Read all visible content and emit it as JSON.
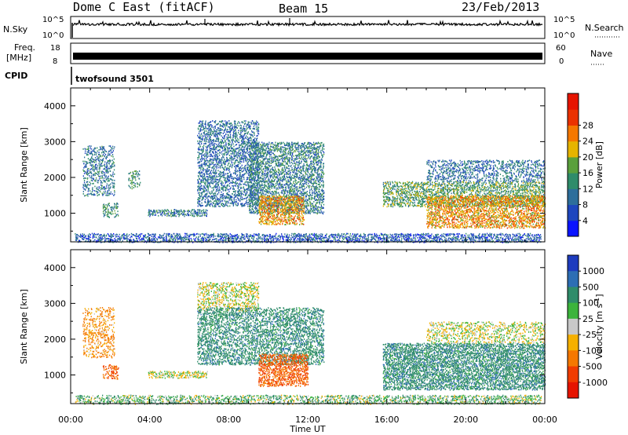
{
  "header": {
    "title": "Dome C East (fitACF)",
    "beam": "Beam 15",
    "date": "23/Feb/2013"
  },
  "status_panels": {
    "nsky_label": "N.Sky",
    "nsky_ticks": [
      "10^5",
      "10^0"
    ],
    "nsearch_label": "N.Search",
    "nsearch_ticks": [
      "10^5",
      "10^0"
    ],
    "freq_label": "Freq.",
    "freq_unit": "[MHz]",
    "freq_ticks": [
      "18",
      "8"
    ],
    "nave_label": "Nave",
    "nave_ticks": [
      "60",
      "0"
    ],
    "cpid_label": "CPID",
    "cpid_value": "twofsound 3501"
  },
  "chart_data": [
    {
      "type": "heatmap",
      "parameter": "power",
      "ylabel": "Slant Range [km]",
      "xlabel": "",
      "x_range_hours": [
        0,
        24
      ],
      "x_ticks": [
        "00:00",
        "04:00",
        "08:00",
        "12:00",
        "16:00",
        "20:00",
        "00:00"
      ],
      "y_range": [
        200,
        4500
      ],
      "y_ticks": [
        1000,
        2000,
        3000,
        4000
      ],
      "colorbar": {
        "label": "Power [dB]",
        "ticks": [
          4,
          8,
          12,
          16,
          20,
          24,
          28
        ],
        "colors": [
          "#0a14ff",
          "#1e46be",
          "#2d6e9b",
          "#2f8c6a",
          "#5aa03c",
          "#e6b400",
          "#f57800",
          "#eb3200",
          "#e61400"
        ]
      },
      "regions": [
        {
          "t0": 0.2,
          "t1": 23.8,
          "r0": 200,
          "r1": 450,
          "density": 0.55,
          "p": 6
        },
        {
          "t0": 0.6,
          "t1": 2.2,
          "r0": 1500,
          "r1": 2900,
          "density": 0.35,
          "p": 9
        },
        {
          "t0": 1.6,
          "t1": 2.4,
          "r0": 900,
          "r1": 1300,
          "density": 0.4,
          "p": 12
        },
        {
          "t0": 2.9,
          "t1": 3.5,
          "r0": 1700,
          "r1": 2200,
          "density": 0.35,
          "p": 12
        },
        {
          "t0": 3.9,
          "t1": 6.9,
          "r0": 930,
          "r1": 1120,
          "density": 0.6,
          "p": 9
        },
        {
          "t0": 6.4,
          "t1": 9.5,
          "r0": 1200,
          "r1": 3600,
          "density": 0.45,
          "p": 8
        },
        {
          "t0": 9.0,
          "t1": 12.8,
          "r0": 1000,
          "r1": 3000,
          "density": 0.5,
          "p": 10
        },
        {
          "t0": 9.5,
          "t1": 11.8,
          "r0": 700,
          "r1": 1500,
          "density": 0.55,
          "p": 22
        },
        {
          "t0": 15.8,
          "t1": 24,
          "r0": 1200,
          "r1": 1900,
          "density": 0.5,
          "p": 14
        },
        {
          "t0": 18,
          "t1": 24,
          "r0": 600,
          "r1": 1500,
          "density": 0.55,
          "p": 22
        },
        {
          "t0": 18,
          "t1": 24,
          "r0": 1900,
          "r1": 2500,
          "density": 0.35,
          "p": 8
        }
      ]
    },
    {
      "type": "heatmap",
      "parameter": "velocity",
      "ylabel": "Slant Range [km]",
      "xlabel": "Time UT",
      "x_range_hours": [
        0,
        24
      ],
      "x_ticks": [
        "00:00",
        "04:00",
        "08:00",
        "12:00",
        "16:00",
        "20:00",
        "00:00"
      ],
      "y_range": [
        200,
        4500
      ],
      "y_ticks": [
        1000,
        2000,
        3000,
        4000
      ],
      "colorbar": {
        "label": "Velocity [m s^-1]",
        "ticks": [
          "1000",
          "500",
          "100",
          "25",
          "-25",
          "-100",
          "-500",
          "-1000"
        ],
        "colors": [
          "#1e3cbe",
          "#2d6eb4",
          "#2f8c6a",
          "#3cb43c",
          "#c8c8c8",
          "#f5b000",
          "#f57800",
          "#f03c00",
          "#e61400"
        ]
      },
      "regions": [
        {
          "t0": 0.2,
          "t1": 23.8,
          "r0": 200,
          "r1": 450,
          "density": 0.45,
          "v": 50
        },
        {
          "t0": 0.6,
          "t1": 2.2,
          "r0": 1500,
          "r1": 2900,
          "density": 0.3,
          "v": -100
        },
        {
          "t0": 1.6,
          "t1": 2.4,
          "r0": 900,
          "r1": 1300,
          "density": 0.4,
          "v": -300
        },
        {
          "t0": 3.9,
          "t1": 6.9,
          "r0": 930,
          "r1": 1120,
          "density": 0.6,
          "v": 0
        },
        {
          "t0": 6.4,
          "t1": 9.5,
          "r0": 2800,
          "r1": 3600,
          "density": 0.4,
          "v": 0
        },
        {
          "t0": 6.4,
          "t1": 12.8,
          "r0": 1300,
          "r1": 2900,
          "density": 0.45,
          "v": 200
        },
        {
          "t0": 9.5,
          "t1": 12,
          "r0": 700,
          "r1": 1600,
          "density": 0.55,
          "v": -300
        },
        {
          "t0": 15.8,
          "t1": 24,
          "r0": 600,
          "r1": 1900,
          "density": 0.6,
          "v": 200
        },
        {
          "t0": 18,
          "t1": 24,
          "r0": 1900,
          "r1": 2500,
          "density": 0.35,
          "v": 0
        }
      ]
    }
  ]
}
